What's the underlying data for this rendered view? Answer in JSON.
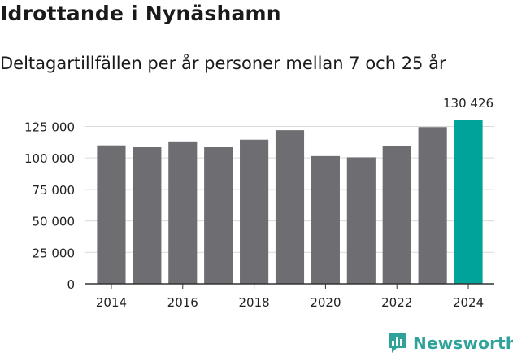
{
  "title": "Idrottande i Nynäshamn",
  "subtitle": "Deltagartillfällen per år personer mellan 7 och 25 år",
  "brand": {
    "name": "Newsworthy",
    "color": "#2fa39a",
    "icon": "newsworthy-logo-icon"
  },
  "colors": {
    "bar": "#6e6d72",
    "highlight": "#00a39a",
    "grid": "#d9d9d9",
    "axis": "#333333"
  },
  "chart_data": {
    "type": "bar",
    "title": "Idrottande i Nynäshamn",
    "subtitle": "Deltagartillfällen per år personer mellan 7 och 25 år",
    "categories": [
      "2014",
      "2015",
      "2016",
      "2017",
      "2018",
      "2019",
      "2020",
      "2021",
      "2022",
      "2023",
      "2024"
    ],
    "values": [
      110000,
      108500,
      112500,
      108500,
      114500,
      122000,
      101500,
      100500,
      109500,
      124500,
      130426
    ],
    "highlight_index": 10,
    "data_label": "130 426",
    "x_tick_labels": [
      "2014",
      "2016",
      "2018",
      "2020",
      "2022",
      "2024"
    ],
    "y_ticks": [
      0,
      25000,
      50000,
      75000,
      100000,
      125000
    ],
    "y_tick_labels": [
      "0",
      "25 000",
      "50 000",
      "75 000",
      "100 000",
      "125 000"
    ],
    "ylim": [
      0,
      135000
    ],
    "xlabel": "",
    "ylabel": "",
    "grid": true
  }
}
